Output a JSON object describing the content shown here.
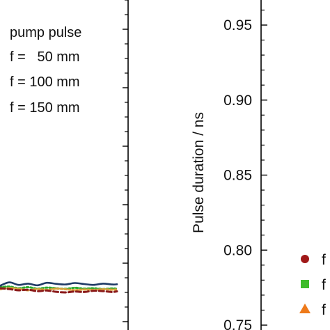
{
  "chart_data": [
    {
      "type": "line",
      "title": "",
      "xlabel": "",
      "ylabel": "",
      "legend": {
        "placement": "top-left",
        "entries": [
          "pump pulse",
          "f =   50 mm",
          "f = 100 mm",
          "f = 150 mm"
        ]
      },
      "series": [
        {
          "name": "pump pulse",
          "color": "#1f3b66",
          "style": "solid",
          "x": [
            0.0,
            0.08,
            0.16,
            0.24,
            0.32,
            0.4,
            0.48,
            0.56,
            0.64,
            0.72,
            0.8,
            0.88,
            0.96,
            1.0
          ],
          "y": [
            0.212,
            0.228,
            0.216,
            0.222,
            0.214,
            0.226,
            0.221,
            0.218,
            0.225,
            0.22,
            0.216,
            0.222,
            0.218,
            0.219
          ]
        },
        {
          "name": "f =   50 mm",
          "color": "#8b1a1a",
          "style": "dashed",
          "x": [
            0.0,
            0.08,
            0.16,
            0.24,
            0.32,
            0.4,
            0.48,
            0.56,
            0.64,
            0.72,
            0.8,
            0.88,
            0.96,
            1.0
          ],
          "y": [
            0.2,
            0.196,
            0.19,
            0.193,
            0.186,
            0.189,
            0.183,
            0.18,
            0.184,
            0.182,
            0.188,
            0.186,
            0.182,
            0.185
          ]
        },
        {
          "name": "f = 100 mm",
          "color": "#2eaa2e",
          "style": "dotted",
          "x": [
            0.0,
            0.08,
            0.16,
            0.24,
            0.32,
            0.4,
            0.48,
            0.56,
            0.64,
            0.72,
            0.8,
            0.88,
            0.96,
            1.0
          ],
          "y": [
            0.205,
            0.208,
            0.2,
            0.205,
            0.198,
            0.203,
            0.2,
            0.197,
            0.202,
            0.198,
            0.2,
            0.196,
            0.199,
            0.197
          ]
        },
        {
          "name": "f = 150 mm",
          "color": "#d9a13a",
          "style": "dotted",
          "x": [
            0.0,
            0.08,
            0.16,
            0.24,
            0.32,
            0.4,
            0.48,
            0.56,
            0.64,
            0.72,
            0.8,
            0.88,
            0.96,
            1.0
          ],
          "y": [
            0.195,
            0.201,
            0.197,
            0.19,
            0.196,
            0.192,
            0.198,
            0.195,
            0.191,
            0.194,
            0.192,
            0.195,
            0.193,
            0.194
          ]
        }
      ]
    },
    {
      "type": "scatter",
      "title": "",
      "xlabel": "",
      "ylabel": "Pulse duration / ns",
      "ylim": [
        0.75,
        0.965
      ],
      "yticks": [
        "0.75",
        "0.80",
        "0.85",
        "0.90",
        "0.95"
      ],
      "legend": {
        "placement": "bottom-right",
        "entries": [
          {
            "marker": "circle",
            "color": "#a01818",
            "label": "f"
          },
          {
            "marker": "square",
            "color": "#3dbb2a",
            "label": "f"
          },
          {
            "marker": "triangle",
            "color": "#ee7a1a",
            "label": "f"
          }
        ]
      },
      "series": []
    }
  ]
}
